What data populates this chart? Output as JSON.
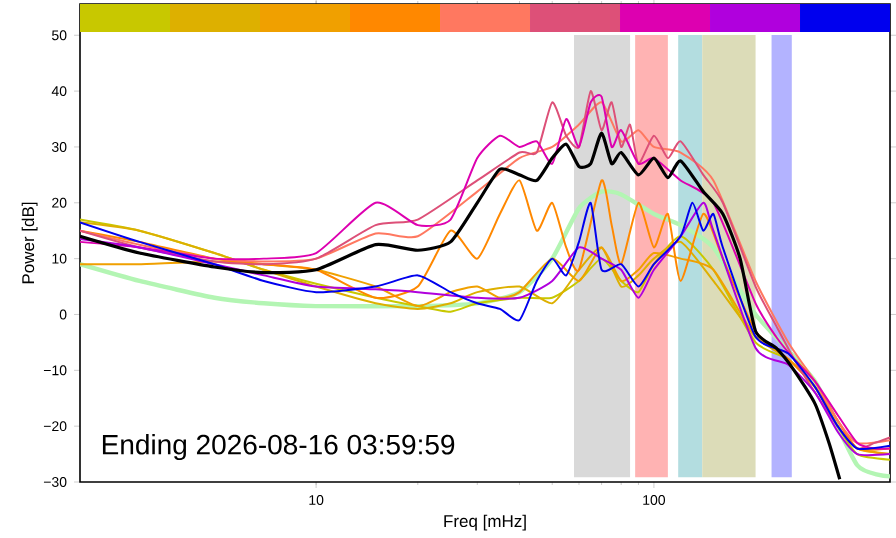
{
  "chart_data": {
    "type": "line",
    "xlabel": "Freq [mHz]",
    "ylabel": "Power [dB]",
    "log": "x",
    "xlim": [
      2,
      500
    ],
    "ylim": [
      -30,
      55.6
    ],
    "xticks": [
      10,
      100
    ],
    "yticks": [
      {
        "value": -30,
        "label": "−30"
      },
      {
        "value": -20,
        "label": "−20"
      },
      {
        "value": -10,
        "label": "−10"
      },
      0,
      10,
      20,
      30,
      40,
      50
    ],
    "annotations": [
      "Ending 2026-08-16 03:59:59"
    ],
    "bands": [
      {
        "axis": "x",
        "from": 58,
        "to": 85,
        "color": "#d9d9d9"
      },
      {
        "axis": "x",
        "from": 88,
        "to": 110,
        "color": "#ffb3b3"
      },
      {
        "axis": "x",
        "from": 118,
        "to": 139,
        "color": "#b3dde0"
      },
      {
        "axis": "x",
        "from": 139,
        "to": 200,
        "color": "#dcdcb8"
      },
      {
        "axis": "x",
        "from": 223,
        "to": 256,
        "color": "#b3b3ff"
      }
    ],
    "series": [
      {
        "type": "line",
        "color": "#b3f5b3",
        "x": [
          2,
          3,
          5,
          7,
          10,
          20,
          30,
          40,
          50,
          60,
          70,
          80,
          100,
          120,
          150,
          200,
          300,
          400,
          500
        ],
        "values": [
          9,
          6,
          3,
          2,
          1.5,
          1.5,
          2,
          4,
          10,
          19,
          22,
          21.5,
          18,
          16,
          12,
          0,
          -12,
          -27,
          -29
        ]
      },
      {
        "color": "#c8c800",
        "x": [
          2,
          3,
          5,
          7,
          10,
          15,
          20,
          25,
          30,
          40,
          50,
          60,
          70,
          80,
          90,
          100,
          120,
          150,
          200,
          250,
          300,
          350,
          400,
          500
        ],
        "values": [
          17,
          15,
          11,
          8,
          5.5,
          3,
          1.5,
          0.5,
          2,
          3,
          3,
          6,
          10,
          6,
          4,
          9,
          14,
          8,
          -5,
          -8,
          -13,
          -20,
          -25,
          -26
        ]
      },
      {
        "color": "#ddb000",
        "x": [
          2,
          3,
          5,
          7,
          10,
          15,
          20,
          25,
          30,
          40,
          50,
          60,
          70,
          80,
          90,
          100,
          120,
          150,
          200,
          250,
          300,
          350,
          400,
          500
        ],
        "values": [
          16.5,
          15,
          11,
          8,
          5,
          2,
          1,
          2,
          4,
          5,
          2,
          8,
          12,
          5,
          7,
          10,
          13,
          6,
          -4,
          -8,
          -13,
          -20,
          -24,
          -25
        ]
      },
      {
        "color": "#f0a000",
        "x": [
          2,
          3,
          5,
          7,
          10,
          15,
          20,
          25,
          30,
          35,
          40,
          50,
          60,
          70,
          80,
          90,
          100,
          120,
          150,
          200,
          250,
          300,
          350,
          400,
          500
        ],
        "values": [
          9,
          9,
          9.5,
          9,
          8,
          5,
          1.5,
          4,
          5,
          3,
          4,
          10,
          6,
          12,
          6,
          8,
          11,
          10,
          8,
          -4,
          -7,
          -12,
          -19,
          -24,
          -25
        ]
      },
      {
        "color": "#ff8800",
        "x": [
          2,
          3,
          5,
          7,
          10,
          15,
          20,
          25,
          30,
          35,
          40,
          45,
          50,
          55,
          60,
          70,
          75,
          80,
          90,
          100,
          110,
          120,
          140,
          160,
          200,
          250,
          300,
          350,
          400,
          500
        ],
        "values": [
          15,
          13,
          10,
          9,
          8,
          3,
          5,
          15,
          10,
          18,
          24,
          15,
          20,
          12,
          8,
          24,
          16,
          9,
          20,
          12,
          18,
          6,
          18,
          10,
          -3,
          -8,
          -13,
          -19,
          -24,
          -24
        ]
      },
      {
        "color": "#ff7860",
        "x": [
          2,
          3,
          5,
          7,
          10,
          15,
          20,
          30,
          40,
          50,
          60,
          70,
          80,
          90,
          100,
          120,
          150,
          200,
          250,
          300,
          350,
          400,
          500
        ],
        "values": [
          15,
          12.5,
          10,
          9.5,
          10,
          14.5,
          14,
          22,
          28,
          30,
          34,
          38,
          31,
          33,
          30,
          29,
          24,
          6,
          -5,
          -12,
          -19,
          -23,
          -22.5
        ]
      },
      {
        "color": "#dd5078",
        "x": [
          2,
          3,
          5,
          7,
          10,
          15,
          20,
          30,
          40,
          45,
          50,
          55,
          60,
          65,
          70,
          75,
          80,
          85,
          90,
          100,
          110,
          120,
          140,
          160,
          200,
          230,
          260,
          300,
          350,
          400,
          450,
          500
        ],
        "values": [
          15,
          12,
          9.5,
          9,
          10,
          16,
          17,
          24,
          29,
          29,
          38,
          32,
          30,
          40,
          33,
          38,
          30,
          34,
          27,
          32,
          28,
          31,
          25,
          20,
          5,
          -2,
          -8,
          -14,
          -20,
          -24,
          -23,
          -22
        ]
      },
      {
        "color": "#dd00b0",
        "x": [
          2,
          3,
          5,
          7,
          10,
          15,
          20,
          25,
          30,
          35,
          40,
          45,
          50,
          55,
          60,
          65,
          70,
          75,
          80,
          90,
          100,
          120,
          150,
          200,
          230,
          260,
          300,
          350,
          400,
          450,
          500
        ],
        "values": [
          13,
          12,
          10,
          10,
          11,
          20,
          16,
          17,
          28,
          32,
          30,
          31,
          27,
          35,
          30,
          38,
          39,
          30,
          33,
          27,
          28,
          24,
          20,
          2,
          -4,
          -8,
          -12,
          -18,
          -23,
          -24,
          -24
        ]
      },
      {
        "color": "#b000dd",
        "x": [
          2,
          3,
          5,
          7,
          10,
          15,
          20,
          30,
          40,
          50,
          60,
          70,
          80,
          90,
          100,
          120,
          140,
          150,
          200,
          250,
          300,
          350,
          400,
          500
        ],
        "values": [
          13.5,
          12,
          9,
          7,
          5,
          4.5,
          4,
          3,
          3,
          6,
          12,
          10,
          8,
          3,
          8,
          14,
          20,
          15,
          -6,
          -9,
          -14,
          -21,
          -25,
          -25
        ]
      },
      {
        "color": "#0000ee",
        "x": [
          2,
          3,
          5,
          7,
          10,
          15,
          20,
          25,
          30,
          35,
          40,
          45,
          50,
          55,
          60,
          65,
          70,
          80,
          90,
          100,
          120,
          130,
          140,
          150,
          160,
          200,
          250,
          300,
          350,
          400,
          500
        ],
        "values": [
          16.5,
          13,
          9,
          6,
          4,
          5,
          7,
          4,
          2,
          1,
          -1,
          6,
          10,
          7,
          13,
          20,
          8,
          9,
          5,
          9,
          14,
          20,
          15,
          18,
          12,
          -4,
          -7,
          -13,
          -20,
          -24,
          -23.5
        ]
      },
      {
        "type": "line",
        "color": "#000000",
        "x": [
          2,
          3,
          5,
          7,
          10,
          15,
          20,
          25,
          30,
          35,
          40,
          45,
          50,
          55,
          60,
          65,
          70,
          75,
          80,
          90,
          100,
          110,
          120,
          140,
          160,
          180,
          200,
          230,
          260,
          300,
          330,
          355
        ],
        "values": [
          14,
          11,
          8.5,
          7.5,
          8,
          12.5,
          11.5,
          13,
          20,
          26,
          25,
          24,
          28,
          30.5,
          26.5,
          27,
          32.5,
          27,
          29,
          25,
          28,
          24.5,
          27.5,
          22,
          18,
          10,
          -3,
          -6,
          -10,
          -16,
          -23,
          -29.5
        ]
      }
    ]
  }
}
